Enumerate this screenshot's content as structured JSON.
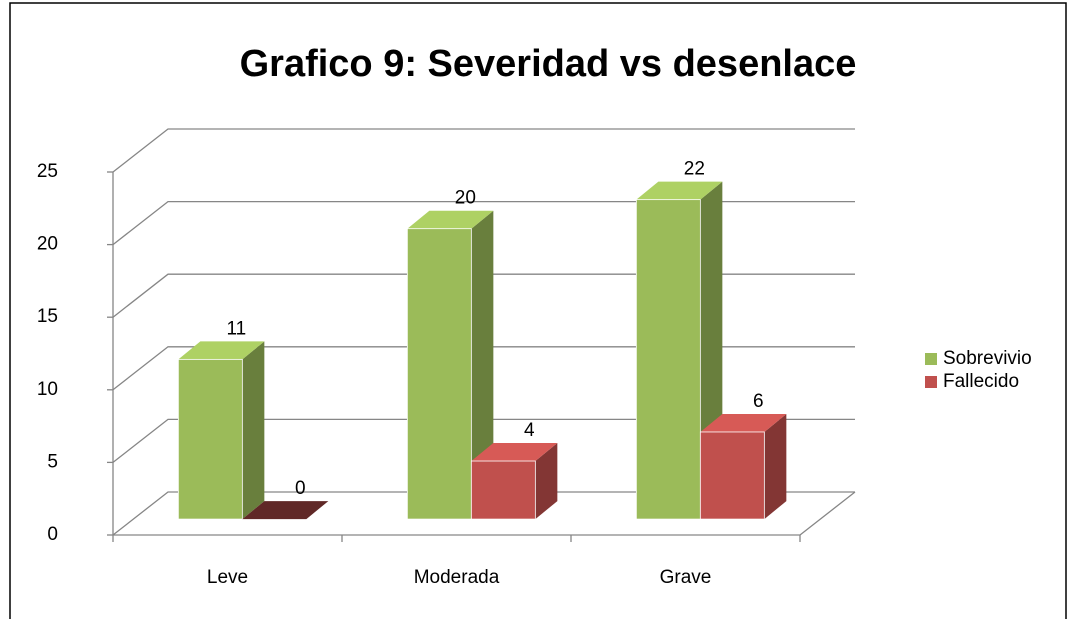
{
  "chart_data": {
    "type": "bar3d",
    "title": "Grafico 9: Severidad vs desenlace",
    "categories": [
      "Leve",
      "Moderada",
      "Grave"
    ],
    "series": [
      {
        "name": "Sobrevivio",
        "color": "#9bbb59",
        "values": [
          11,
          20,
          22
        ]
      },
      {
        "name": "Fallecido",
        "color": "#c0504d",
        "values": [
          0,
          4,
          6
        ]
      }
    ],
    "ylim": [
      0,
      25
    ],
    "yticks": [
      0,
      5,
      10,
      15,
      20,
      25
    ],
    "grid": true,
    "legend": "right"
  }
}
